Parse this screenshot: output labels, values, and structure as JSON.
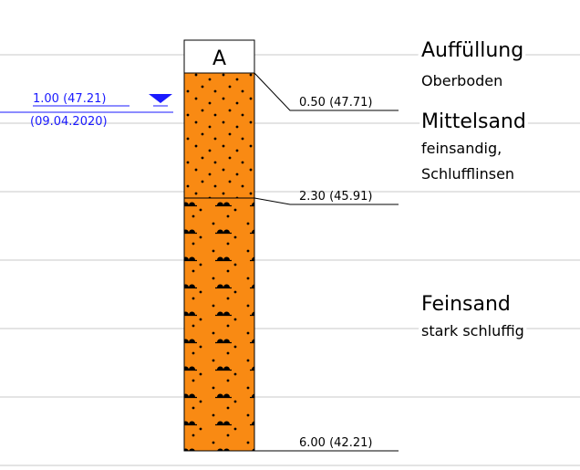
{
  "borehole": {
    "name": "A",
    "depths": [
      "0.50 (47.71)",
      "2.30 (45.91)",
      "6.00 (42.21)"
    ],
    "water_level": {
      "depth": "1.00 (47.21)",
      "date": "(09.04.2020)"
    },
    "layers": [
      {
        "name": "Auffüllung",
        "description": [
          "Oberboden"
        ]
      },
      {
        "name": "Mittelsand",
        "description": [
          "feinsandig,",
          "Schlufflinsen"
        ]
      },
      {
        "name": "Feinsand",
        "description": [
          "stark schluffig"
        ]
      }
    ]
  }
}
